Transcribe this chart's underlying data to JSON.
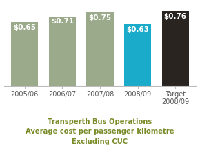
{
  "categories": [
    "2005/06",
    "2006/07",
    "2007/08",
    "2008/09",
    "Target\n2008/09"
  ],
  "values": [
    0.65,
    0.71,
    0.75,
    0.63,
    0.76
  ],
  "bar_colors": [
    "#9aaa8a",
    "#9aaa8a",
    "#9aaa8a",
    "#1aabca",
    "#2a2420"
  ],
  "labels": [
    "$0.65",
    "$0.71",
    "$0.75",
    "$0.63",
    "$0.76"
  ],
  "title_line1": "Transperth Bus Operations",
  "title_line2": "Average cost per passenger kilometre",
  "title_line3": "Excluding CUC",
  "title_color": "#7a8c2a",
  "ylim": [
    0,
    0.83
  ],
  "background_color": "#ffffff",
  "label_color": "#ffffff",
  "label_fontsize": 7.5,
  "tick_label_fontsize": 7.0,
  "title_fontsize": 7.2,
  "bar_width": 0.72
}
